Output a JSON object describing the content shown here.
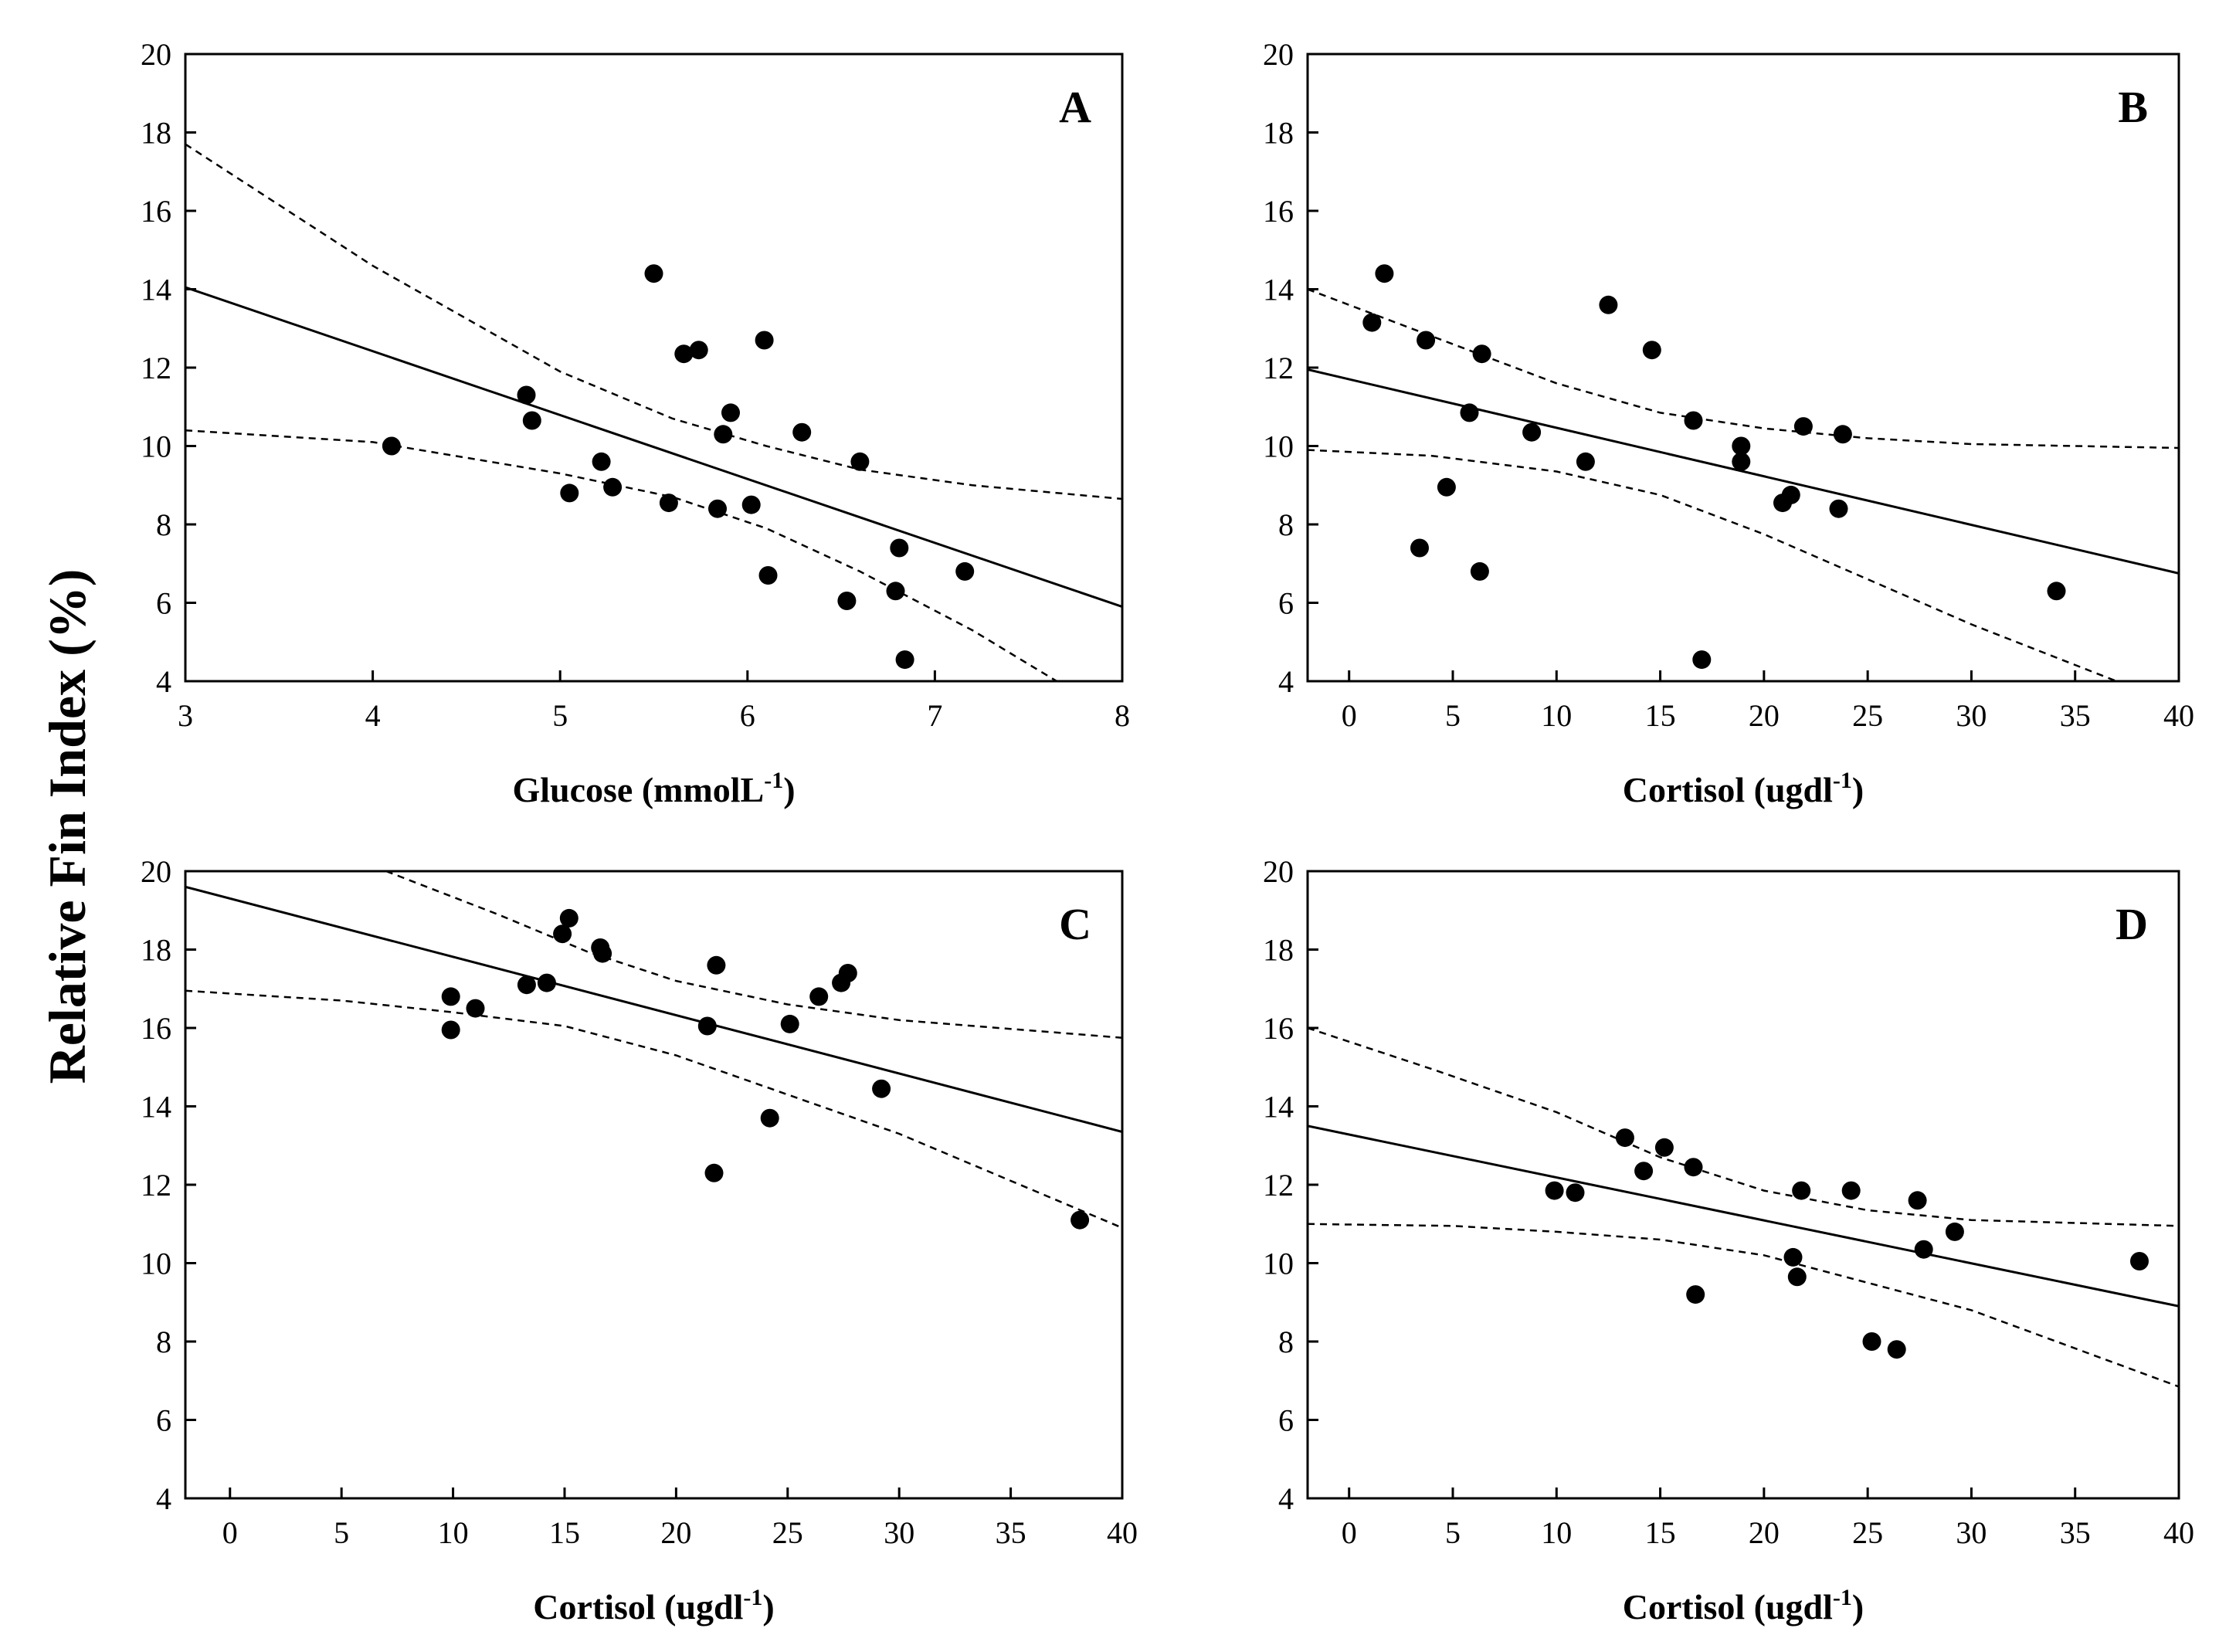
{
  "y_axis_title": "Relative Fin Index (%)",
  "chart_data": [
    {
      "type": "scatter",
      "panel_label": "A",
      "xlabel": {
        "text": "Glucose (mmolL",
        "sup": "-1",
        "suffix": ")"
      },
      "xlim": [
        3,
        8
      ],
      "ylim": [
        4,
        20
      ],
      "xticks": [
        3,
        4,
        5,
        6,
        7,
        8
      ],
      "yticks": [
        4,
        6,
        8,
        10,
        12,
        14,
        16,
        18,
        20
      ],
      "grid": false,
      "points": [
        [
          4.1,
          10.0
        ],
        [
          4.82,
          11.3
        ],
        [
          4.85,
          10.65
        ],
        [
          5.05,
          8.8
        ],
        [
          5.22,
          9.6
        ],
        [
          5.28,
          8.95
        ],
        [
          5.5,
          14.4
        ],
        [
          5.58,
          8.55
        ],
        [
          5.66,
          12.35
        ],
        [
          5.74,
          12.45
        ],
        [
          5.84,
          8.4
        ],
        [
          5.87,
          10.3
        ],
        [
          5.91,
          10.85
        ],
        [
          6.02,
          8.5
        ],
        [
          6.09,
          12.7
        ],
        [
          6.11,
          6.7
        ],
        [
          6.29,
          10.35
        ],
        [
          6.53,
          6.05
        ],
        [
          6.6,
          9.6
        ],
        [
          6.79,
          6.3
        ],
        [
          6.81,
          7.4
        ],
        [
          6.84,
          4.55
        ],
        [
          7.16,
          6.8
        ]
      ],
      "fit_line": [
        [
          3,
          14.05
        ],
        [
          8,
          5.9
        ]
      ],
      "ci_upper": [
        [
          3,
          17.7
        ],
        [
          4,
          14.6
        ],
        [
          5,
          11.9
        ],
        [
          5.6,
          10.7
        ],
        [
          6.1,
          10.0
        ],
        [
          6.6,
          9.4
        ],
        [
          7.2,
          9.0
        ],
        [
          8,
          8.65
        ]
      ],
      "ci_lower": [
        [
          3,
          10.4
        ],
        [
          4,
          10.1
        ],
        [
          5,
          9.3
        ],
        [
          5.6,
          8.7
        ],
        [
          6.1,
          7.9
        ],
        [
          6.6,
          6.8
        ],
        [
          7.2,
          5.3
        ],
        [
          7.65,
          4.0
        ]
      ]
    },
    {
      "type": "scatter",
      "panel_label": "B",
      "xlabel": {
        "text": "Cortisol (ugdl",
        "sup": "-1",
        "suffix": ")"
      },
      "xlim": [
        -2,
        40
      ],
      "ylim": [
        4,
        20
      ],
      "xticks": [
        0,
        5,
        10,
        15,
        20,
        25,
        30,
        35,
        40
      ],
      "yticks": [
        4,
        6,
        8,
        10,
        12,
        14,
        16,
        18,
        20
      ],
      "grid": false,
      "points": [
        [
          1.1,
          13.15
        ],
        [
          1.7,
          14.4
        ],
        [
          3.4,
          7.4
        ],
        [
          3.7,
          12.7
        ],
        [
          4.7,
          8.95
        ],
        [
          5.8,
          10.85
        ],
        [
          6.3,
          6.8
        ],
        [
          6.4,
          12.35
        ],
        [
          8.8,
          10.35
        ],
        [
          11.4,
          9.6
        ],
        [
          12.5,
          13.6
        ],
        [
          14.6,
          12.45
        ],
        [
          16.6,
          10.65
        ],
        [
          17.0,
          4.55
        ],
        [
          18.9,
          10.0
        ],
        [
          18.9,
          9.6
        ],
        [
          20.9,
          8.55
        ],
        [
          21.3,
          8.75
        ],
        [
          21.9,
          10.5
        ],
        [
          23.6,
          8.4
        ],
        [
          23.8,
          10.3
        ],
        [
          34.1,
          6.3
        ]
      ],
      "fit_line": [
        [
          -2,
          11.95
        ],
        [
          40,
          6.75
        ]
      ],
      "ci_upper": [
        [
          -2,
          14.0
        ],
        [
          4,
          12.8
        ],
        [
          10,
          11.6
        ],
        [
          15,
          10.85
        ],
        [
          20,
          10.45
        ],
        [
          25,
          10.2
        ],
        [
          30,
          10.05
        ],
        [
          40,
          9.95
        ]
      ],
      "ci_lower": [
        [
          -2,
          9.9
        ],
        [
          4,
          9.75
        ],
        [
          10,
          9.35
        ],
        [
          15,
          8.75
        ],
        [
          20,
          7.75
        ],
        [
          25,
          6.6
        ],
        [
          30,
          5.45
        ],
        [
          37,
          4.0
        ]
      ]
    },
    {
      "type": "scatter",
      "panel_label": "C",
      "xlabel": {
        "text": "Cortisol (ugdl",
        "sup": "-1",
        "suffix": ")"
      },
      "xlim": [
        -2,
        40
      ],
      "ylim": [
        4,
        20
      ],
      "xticks": [
        0,
        5,
        10,
        15,
        20,
        25,
        30,
        35,
        40
      ],
      "yticks": [
        4,
        6,
        8,
        10,
        12,
        14,
        16,
        18,
        20
      ],
      "grid": false,
      "points": [
        [
          9.9,
          16.8
        ],
        [
          9.9,
          15.95
        ],
        [
          11.0,
          16.5
        ],
        [
          13.3,
          17.1
        ],
        [
          14.2,
          17.15
        ],
        [
          14.9,
          18.4
        ],
        [
          15.2,
          18.8
        ],
        [
          16.6,
          18.05
        ],
        [
          16.7,
          17.9
        ],
        [
          21.4,
          16.05
        ],
        [
          21.7,
          12.3
        ],
        [
          21.8,
          17.6
        ],
        [
          24.2,
          13.7
        ],
        [
          25.1,
          16.1
        ],
        [
          26.4,
          16.8
        ],
        [
          27.4,
          17.15
        ],
        [
          27.7,
          17.4
        ],
        [
          29.2,
          14.45
        ],
        [
          38.1,
          11.1
        ]
      ],
      "fit_line": [
        [
          -2,
          19.6
        ],
        [
          40,
          13.35
        ]
      ],
      "ci_upper": [
        [
          7,
          20.0
        ],
        [
          12,
          18.9
        ],
        [
          16,
          17.95
        ],
        [
          20,
          17.2
        ],
        [
          25,
          16.6
        ],
        [
          30,
          16.2
        ],
        [
          40,
          15.75
        ]
      ],
      "ci_lower": [
        [
          -2,
          16.95
        ],
        [
          5,
          16.7
        ],
        [
          10,
          16.4
        ],
        [
          15,
          16.05
        ],
        [
          20,
          15.3
        ],
        [
          25,
          14.3
        ],
        [
          30,
          13.3
        ],
        [
          40,
          10.9
        ]
      ]
    },
    {
      "type": "scatter",
      "panel_label": "D",
      "xlabel": {
        "text": "Cortisol (ugdl",
        "sup": "-1",
        "suffix": ")"
      },
      "xlim": [
        -2,
        40
      ],
      "ylim": [
        4,
        20
      ],
      "xticks": [
        0,
        5,
        10,
        15,
        20,
        25,
        30,
        35,
        40
      ],
      "yticks": [
        4,
        6,
        8,
        10,
        12,
        14,
        16,
        18,
        20
      ],
      "grid": false,
      "points": [
        [
          9.9,
          11.85
        ],
        [
          10.9,
          11.8
        ],
        [
          13.3,
          13.2
        ],
        [
          14.2,
          12.35
        ],
        [
          15.2,
          12.95
        ],
        [
          16.6,
          12.45
        ],
        [
          16.7,
          9.2
        ],
        [
          21.4,
          10.15
        ],
        [
          21.6,
          9.65
        ],
        [
          21.8,
          11.85
        ],
        [
          24.2,
          11.85
        ],
        [
          25.2,
          8.0
        ],
        [
          26.4,
          7.8
        ],
        [
          27.4,
          11.6
        ],
        [
          27.7,
          10.35
        ],
        [
          29.2,
          10.8
        ],
        [
          38.1,
          10.05
        ]
      ],
      "fit_line": [
        [
          -2,
          13.5
        ],
        [
          40,
          8.9
        ]
      ],
      "ci_upper": [
        [
          -2,
          16.0
        ],
        [
          4,
          14.95
        ],
        [
          10,
          13.85
        ],
        [
          15,
          12.7
        ],
        [
          20,
          11.85
        ],
        [
          25,
          11.35
        ],
        [
          30,
          11.1
        ],
        [
          40,
          10.95
        ]
      ],
      "ci_lower": [
        [
          -2,
          11.0
        ],
        [
          5,
          10.95
        ],
        [
          10,
          10.8
        ],
        [
          15,
          10.6
        ],
        [
          20,
          10.2
        ],
        [
          25,
          9.5
        ],
        [
          30,
          8.8
        ],
        [
          40,
          6.85
        ]
      ]
    }
  ]
}
